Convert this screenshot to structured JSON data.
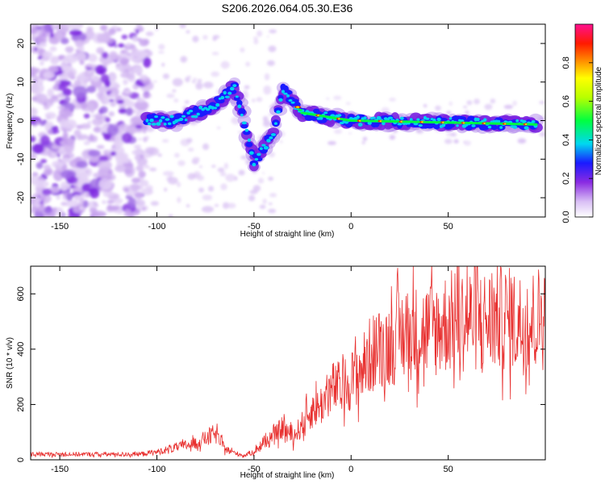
{
  "title": "S206.2026.064.05.30.E36",
  "chart_data": [
    {
      "type": "heatmap",
      "xlabel": "Height of straight line (km)",
      "ylabel": "Frequency (Hz)",
      "xlim": [
        -165,
        100
      ],
      "ylim": [
        -25,
        25
      ],
      "xticks": [
        -150,
        -100,
        -50,
        0,
        50
      ],
      "yticks": [
        -20,
        -10,
        0,
        10,
        20
      ],
      "colorbar": {
        "label": "Normalized spectral amplitude",
        "range": [
          0,
          1
        ],
        "ticks": [
          0.0,
          0.2,
          0.4,
          0.6,
          0.8
        ]
      },
      "main_trace": [
        {
          "x": -105,
          "y": 0
        },
        {
          "x": -90,
          "y": 0
        },
        {
          "x": -80,
          "y": 2
        },
        {
          "x": -70,
          "y": 4
        },
        {
          "x": -60,
          "y": 9
        },
        {
          "x": -50,
          "y": -11
        },
        {
          "x": -40,
          "y": -3
        },
        {
          "x": -35,
          "y": 8
        },
        {
          "x": -25,
          "y": 2
        },
        {
          "x": 0,
          "y": 0
        },
        {
          "x": 50,
          "y": -0.5
        },
        {
          "x": 95,
          "y": -1
        }
      ]
    },
    {
      "type": "line",
      "xlabel": "Height of straight line (km)",
      "ylabel": "SNR (10 * v/v)",
      "xlim": [
        -165,
        100
      ],
      "ylim": [
        0,
        700
      ],
      "xticks": [
        -150,
        -100,
        -50,
        0,
        50
      ],
      "yticks": [
        0,
        200,
        400,
        600
      ],
      "series": [
        {
          "name": "SNR",
          "color": "#e8302f",
          "x": [
            -165,
            -150,
            -130,
            -110,
            -100,
            -90,
            -80,
            -70,
            -65,
            -60,
            -55,
            -50,
            -45,
            -40,
            -35,
            -30,
            -25,
            -20,
            -15,
            -10,
            -5,
            0,
            5,
            10,
            15,
            20,
            25,
            30,
            35,
            40,
            45,
            50,
            55,
            60,
            65,
            70,
            75,
            80,
            85,
            90,
            95,
            100
          ],
          "y": [
            20,
            20,
            20,
            20,
            28,
            45,
            60,
            95,
            40,
            25,
            15,
            30,
            60,
            80,
            120,
            80,
            130,
            180,
            200,
            260,
            260,
            290,
            320,
            380,
            400,
            420,
            450,
            460,
            460,
            470,
            480,
            500,
            500,
            510,
            510,
            500,
            510,
            510,
            500,
            490,
            510,
            520
          ]
        }
      ]
    }
  ]
}
